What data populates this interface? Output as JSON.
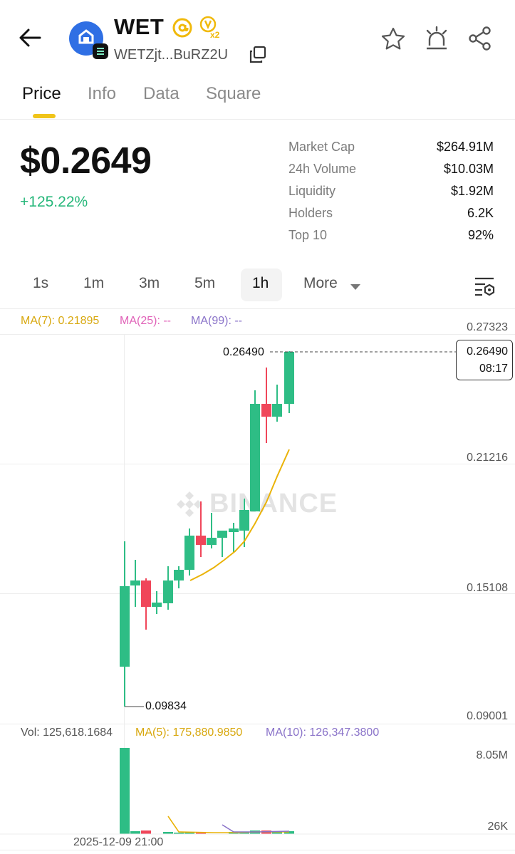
{
  "header": {
    "token_name": "WET",
    "address": "WETZjt...BuRZ2U"
  },
  "tabs": [
    "Price",
    "Info",
    "Data",
    "Square"
  ],
  "price": {
    "value": "$0.2649",
    "change": "+125.22%"
  },
  "stats": [
    {
      "label": "Market Cap",
      "value": "$264.91M"
    },
    {
      "label": "24h Volume",
      "value": "$10.03M"
    },
    {
      "label": "Liquidity",
      "value": "$1.92M"
    },
    {
      "label": "Holders",
      "value": "6.2K"
    },
    {
      "label": "Top 10",
      "value": "92%"
    }
  ],
  "timeframes": [
    "1s",
    "1m",
    "3m",
    "5m",
    "1h",
    "More"
  ],
  "indicators": {
    "ma7": "MA(7): 0.21895",
    "ma25": "MA(25): --",
    "ma99": "MA(99): --"
  },
  "price_axis": {
    "top": "0.27323",
    "mid": "0.21216",
    "low": "0.15108",
    "bottom": "0.09001"
  },
  "current_price": {
    "label": "0.26490",
    "box_price": "0.26490",
    "box_time": "08:17"
  },
  "low_marker": "0.09834",
  "watermark": "BINANCE",
  "volume_row": {
    "vol": "Vol: 125,618.1684",
    "ma5": "MA(5): 175,880.9850",
    "ma10": "MA(10): 126,347.3800"
  },
  "volume_axis": {
    "top": "8.05M",
    "bottom": "26K"
  },
  "time_label": "2025-12-09 21:00",
  "colors": {
    "up": "#2ebd85",
    "down": "#f0465a",
    "ma7": "#eab308",
    "ma25": "#e062b8",
    "ma99": "#8a73c9",
    "accent": "#f0c419"
  },
  "icons": [
    "back-arrow-icon",
    "token-logo-icon",
    "solana-badge-icon",
    "verified-icon",
    "boost-x2-icon",
    "copy-icon",
    "star-icon",
    "alert-icon",
    "share-icon",
    "chart-settings-icon",
    "dropdown-icon"
  ]
}
